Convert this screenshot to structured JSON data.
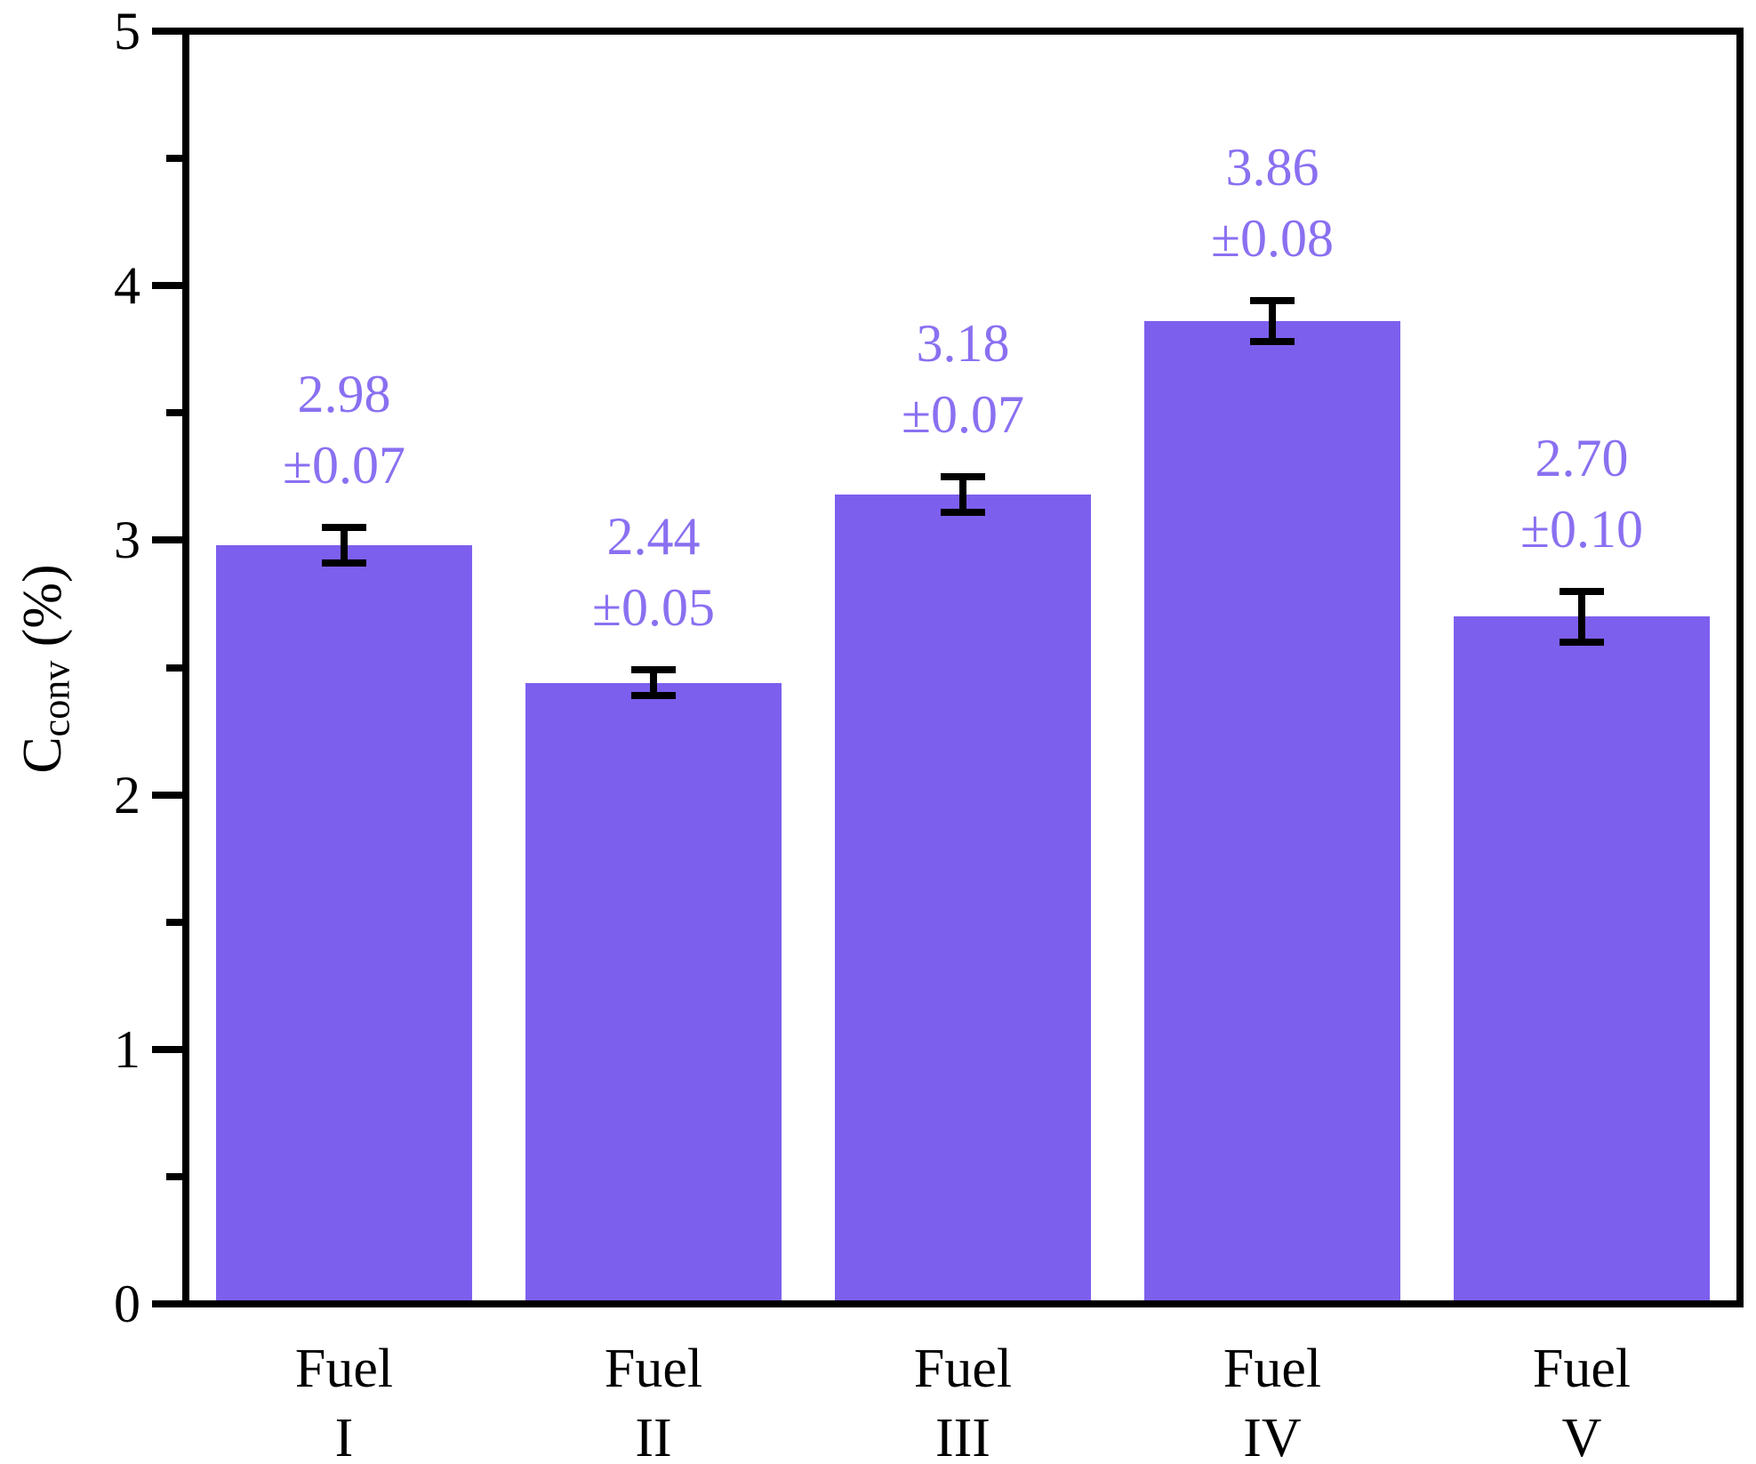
{
  "chart_data": {
    "type": "bar",
    "title": "",
    "xlabel": "",
    "ylabel": "C_conv (%)",
    "ylabel_parts": {
      "main": "C",
      "sub": "conv",
      "unit": " (%)"
    },
    "ylim": [
      0,
      5
    ],
    "ytick_labels": [
      "0",
      "1",
      "2",
      "3",
      "4",
      "5"
    ],
    "ytick_values": [
      0,
      1,
      2,
      3,
      4,
      5
    ],
    "minor_ytick_values": [
      0.5,
      1.5,
      2.5,
      3.5,
      4.5
    ],
    "grid": false,
    "legend": null,
    "categories": [
      {
        "line1": "Fuel",
        "line2": "I",
        "id": "fuel-i"
      },
      {
        "line1": "Fuel",
        "line2": "II",
        "id": "fuel-ii"
      },
      {
        "line1": "Fuel",
        "line2": "III",
        "id": "fuel-iii"
      },
      {
        "line1": "Fuel",
        "line2": "IV",
        "id": "fuel-iv"
      },
      {
        "line1": "Fuel",
        "line2": "V",
        "id": "fuel-v"
      }
    ],
    "values": [
      2.98,
      2.44,
      3.18,
      3.86,
      2.7
    ],
    "errors": [
      0.07,
      0.05,
      0.07,
      0.08,
      0.1
    ],
    "value_label_lines": [
      [
        "2.98",
        "±0.07"
      ],
      [
        "2.44",
        "±0.05"
      ],
      [
        "3.18",
        "±0.07"
      ],
      [
        "3.86",
        "±0.08"
      ],
      [
        "2.70",
        "±0.10"
      ]
    ],
    "colors": {
      "bar": "#7d5fee",
      "value_label": "#8a70f1",
      "axis": "#000000",
      "background": "#ffffff"
    }
  }
}
